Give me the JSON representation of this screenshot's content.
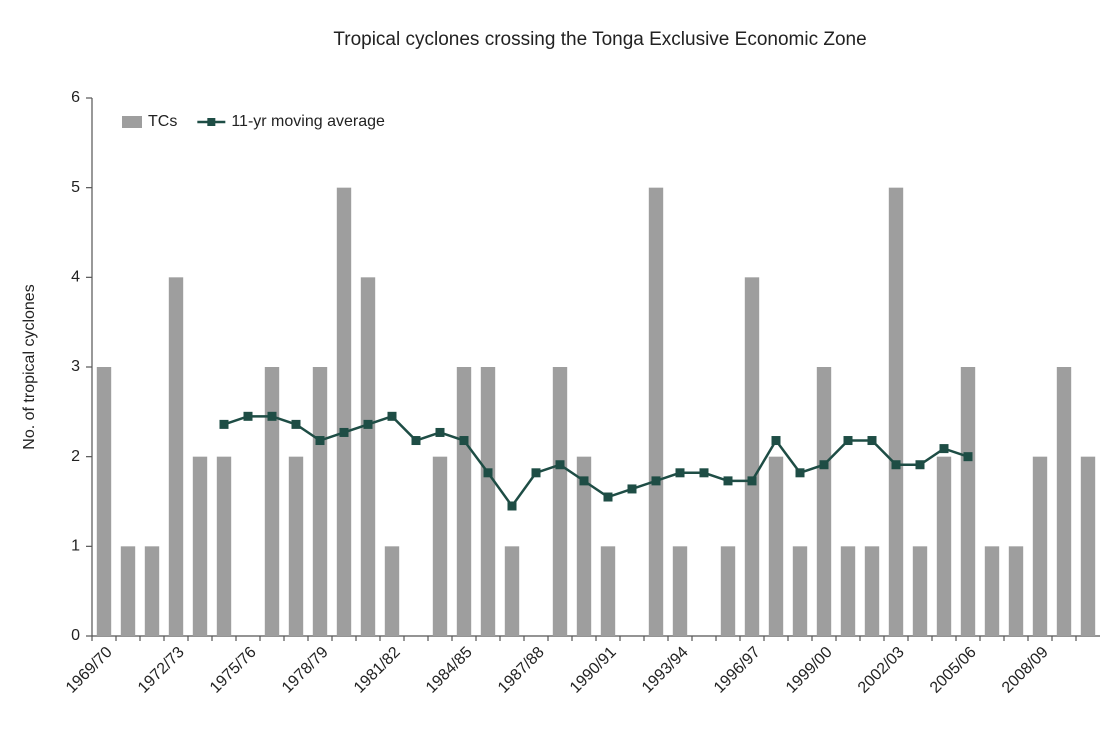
{
  "chart_data": {
    "type": "bar_line",
    "title": "Tropical cyclones crossing the Tonga Exclusive Economic Zone",
    "y_label": "No. of tropical cyclones",
    "categories": [
      "1969/70",
      null,
      null,
      "1972/73",
      null,
      null,
      "1975/76",
      null,
      null,
      "1978/79",
      null,
      null,
      "1981/82",
      null,
      null,
      "1984/85",
      null,
      null,
      "1987/88",
      null,
      null,
      "1990/91",
      null,
      null,
      "1993/94",
      null,
      null,
      "1996/97",
      null,
      null,
      "1999/00",
      null,
      null,
      "2002/03",
      null,
      null,
      "2005/06",
      null,
      null,
      "2008/09",
      null,
      null
    ],
    "series": [
      {
        "name": "TCs",
        "kind": "bar",
        "color": "#9e9e9e",
        "values": [
          3,
          1,
          1,
          4,
          2,
          2,
          0,
          3,
          2,
          3,
          5,
          4,
          1,
          0,
          2,
          3,
          3,
          1,
          0,
          3,
          2,
          1,
          0,
          5,
          1,
          0,
          1,
          4,
          2,
          1,
          3,
          1,
          1,
          5,
          1,
          2,
          3,
          1,
          1,
          2,
          3,
          2
        ]
      },
      {
        "name": "11-yr moving average",
        "kind": "line",
        "color": "#1e4d45",
        "values": [
          null,
          null,
          null,
          null,
          null,
          2.36,
          2.45,
          2.45,
          2.36,
          2.18,
          2.27,
          2.36,
          2.45,
          2.18,
          2.27,
          2.18,
          1.82,
          1.45,
          1.82,
          1.91,
          1.73,
          1.55,
          1.64,
          1.73,
          1.82,
          1.82,
          1.73,
          1.73,
          2.18,
          1.82,
          1.91,
          2.18,
          2.18,
          1.91,
          1.91,
          2.09,
          2.0,
          null,
          null,
          null,
          null,
          null
        ]
      }
    ],
    "ylim": [
      0,
      6
    ],
    "yticks": [
      0,
      1,
      2,
      3,
      4,
      5,
      6
    ],
    "grid": false,
    "legend": "top-left"
  }
}
